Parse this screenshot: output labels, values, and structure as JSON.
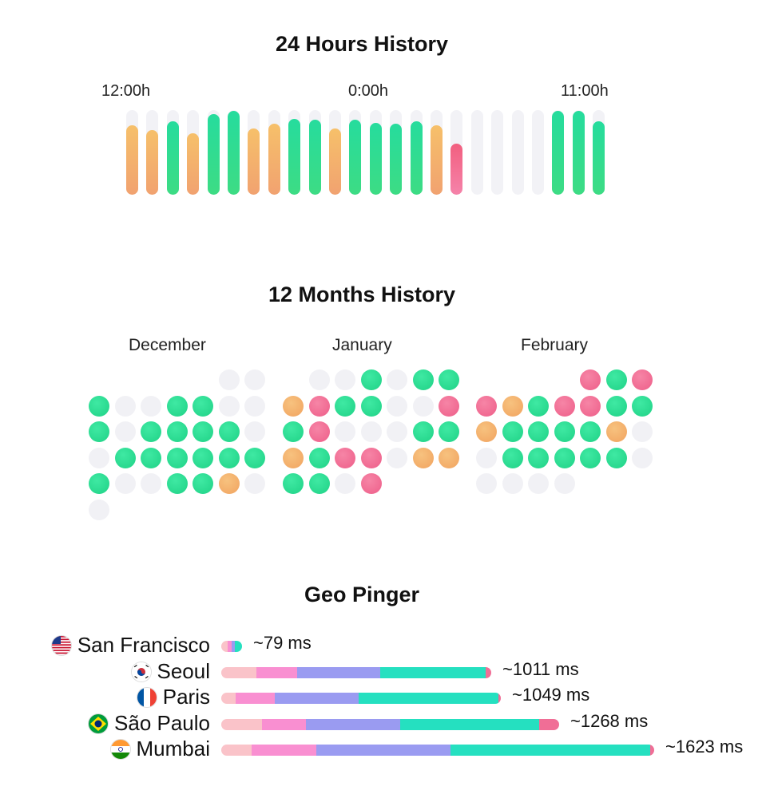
{
  "hours_section": {
    "title": "24 Hours History",
    "labels": [
      "12:00h",
      "0:00h",
      "11:00h"
    ],
    "bars": [
      {
        "status": "orange",
        "level": 0.82
      },
      {
        "status": "orange",
        "level": 0.76
      },
      {
        "status": "green",
        "level": 0.87
      },
      {
        "status": "orange",
        "level": 0.73
      },
      {
        "status": "green",
        "level": 0.95
      },
      {
        "status": "green",
        "level": 0.99
      },
      {
        "status": "orange",
        "level": 0.78
      },
      {
        "status": "orange",
        "level": 0.84
      },
      {
        "status": "green",
        "level": 0.9
      },
      {
        "status": "green",
        "level": 0.89
      },
      {
        "status": "orange",
        "level": 0.78
      },
      {
        "status": "green",
        "level": 0.89
      },
      {
        "status": "green",
        "level": 0.85
      },
      {
        "status": "green",
        "level": 0.84
      },
      {
        "status": "green",
        "level": 0.87
      },
      {
        "status": "orange",
        "level": 0.82
      },
      {
        "status": "red",
        "level": 0.6
      },
      {
        "status": "empty",
        "level": 0
      },
      {
        "status": "empty",
        "level": 0
      },
      {
        "status": "empty",
        "level": 0
      },
      {
        "status": "empty",
        "level": 0
      },
      {
        "status": "green",
        "level": 0.99
      },
      {
        "status": "green",
        "level": 0.99
      },
      {
        "status": "green",
        "level": 0.87
      }
    ]
  },
  "months_section": {
    "title": "12 Months History",
    "months": [
      {
        "name": "December",
        "rows": [
          [
            "none",
            "none",
            "none",
            "none",
            "none",
            "empty",
            "empty"
          ],
          [
            "green",
            "empty",
            "empty",
            "green",
            "green",
            "empty",
            "empty"
          ],
          [
            "green",
            "empty",
            "green",
            "green",
            "green",
            "green",
            "empty"
          ],
          [
            "empty",
            "green",
            "green",
            "green",
            "green",
            "green",
            "green"
          ],
          [
            "green",
            "empty",
            "empty",
            "green",
            "green",
            "orange",
            "empty"
          ],
          [
            "empty"
          ]
        ]
      },
      {
        "name": "January",
        "rows": [
          [
            "none",
            "empty",
            "empty",
            "green",
            "empty",
            "green",
            "green"
          ],
          [
            "orange",
            "red",
            "green",
            "green",
            "empty",
            "empty",
            "red"
          ],
          [
            "green",
            "red",
            "empty",
            "empty",
            "empty",
            "green",
            "green"
          ],
          [
            "orange",
            "green",
            "red",
            "red",
            "empty",
            "orange",
            "orange"
          ],
          [
            "green",
            "green",
            "empty",
            "red"
          ]
        ]
      },
      {
        "name": "February",
        "rows": [
          [
            "none",
            "none",
            "none",
            "none",
            "red",
            "green",
            "red"
          ],
          [
            "red",
            "orange",
            "green",
            "red",
            "red",
            "green",
            "green"
          ],
          [
            "orange",
            "green",
            "green",
            "green",
            "green",
            "orange",
            "empty"
          ],
          [
            "empty",
            "green",
            "green",
            "green",
            "green",
            "green",
            "empty"
          ],
          [
            "empty",
            "empty",
            "empty",
            "empty"
          ]
        ]
      }
    ]
  },
  "geo_section": {
    "title": "Geo Pinger",
    "rows": [
      {
        "city": "San Francisco",
        "flag": "us-flag-icon",
        "ms_label": "~79 ms",
        "ms": 79,
        "parts": [
          0.3,
          0.2,
          0.15,
          0.35,
          0
        ]
      },
      {
        "city": "Seoul",
        "flag": "kr-flag-icon",
        "ms_label": "~1011 ms",
        "ms": 1011,
        "parts": [
          0.13,
          0.15,
          0.31,
          0.39,
          0.02
        ]
      },
      {
        "city": "Paris",
        "flag": "fr-flag-icon",
        "ms_label": "~1049 ms",
        "ms": 1049,
        "parts": [
          0.05,
          0.14,
          0.3,
          0.5,
          0.01
        ]
      },
      {
        "city": "São Paulo",
        "flag": "br-flag-icon",
        "ms_label": "~1268 ms",
        "ms": 1268,
        "parts": [
          0.12,
          0.13,
          0.28,
          0.41,
          0.06
        ]
      },
      {
        "city": "Mumbai",
        "flag": "in-flag-icon",
        "ms_label": "~1623 ms",
        "ms": 1623,
        "parts": [
          0.07,
          0.15,
          0.31,
          0.46,
          0.01
        ]
      }
    ]
  },
  "colors": {
    "green": "#2ddc92",
    "orange": "#f3b06b",
    "red": "#f06a90",
    "empty": "#f1f1f5",
    "dns": "#fac3c9",
    "connect": "#f98fd1",
    "tls": "#9a9bf1",
    "ttfb": "#25e0c0",
    "end": "#f06e96"
  }
}
